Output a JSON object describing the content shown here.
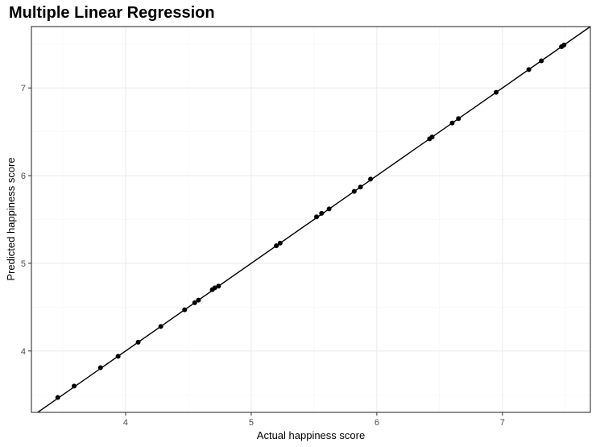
{
  "chart_data": {
    "type": "scatter",
    "title": "Multiple Linear Regression",
    "xlabel": "Actual happiness score",
    "ylabel": "Predicted happiness score",
    "xlim": [
      3.25,
      7.7
    ],
    "ylim": [
      3.3,
      7.7
    ],
    "x_ticks": [
      4,
      5,
      6,
      7
    ],
    "y_ticks": [
      4,
      5,
      6,
      7
    ],
    "grid": true,
    "reference_line": {
      "slope": 1,
      "intercept": 0
    },
    "points": [
      {
        "x": 3.46,
        "y": 3.47
      },
      {
        "x": 3.59,
        "y": 3.6
      },
      {
        "x": 3.8,
        "y": 3.81
      },
      {
        "x": 3.94,
        "y": 3.94
      },
      {
        "x": 4.1,
        "y": 4.1
      },
      {
        "x": 4.28,
        "y": 4.28
      },
      {
        "x": 4.47,
        "y": 4.47
      },
      {
        "x": 4.55,
        "y": 4.55
      },
      {
        "x": 4.58,
        "y": 4.58
      },
      {
        "x": 4.69,
        "y": 4.7
      },
      {
        "x": 4.71,
        "y": 4.72
      },
      {
        "x": 4.74,
        "y": 4.74
      },
      {
        "x": 5.2,
        "y": 5.2
      },
      {
        "x": 5.23,
        "y": 5.23
      },
      {
        "x": 5.52,
        "y": 5.53
      },
      {
        "x": 5.56,
        "y": 5.57
      },
      {
        "x": 5.62,
        "y": 5.62
      },
      {
        "x": 5.82,
        "y": 5.82
      },
      {
        "x": 5.87,
        "y": 5.87
      },
      {
        "x": 5.95,
        "y": 5.96
      },
      {
        "x": 6.42,
        "y": 6.42
      },
      {
        "x": 6.44,
        "y": 6.44
      },
      {
        "x": 6.6,
        "y": 6.6
      },
      {
        "x": 6.65,
        "y": 6.65
      },
      {
        "x": 6.95,
        "y": 6.95
      },
      {
        "x": 7.21,
        "y": 7.21
      },
      {
        "x": 7.31,
        "y": 7.31
      },
      {
        "x": 7.47,
        "y": 7.47
      },
      {
        "x": 7.49,
        "y": 7.49
      }
    ]
  },
  "colors": {
    "point": "#000000",
    "line": "#000000",
    "grid_major": "#ebebeb",
    "grid_minor": "#f5f5f5",
    "panel_border": "#333333"
  }
}
